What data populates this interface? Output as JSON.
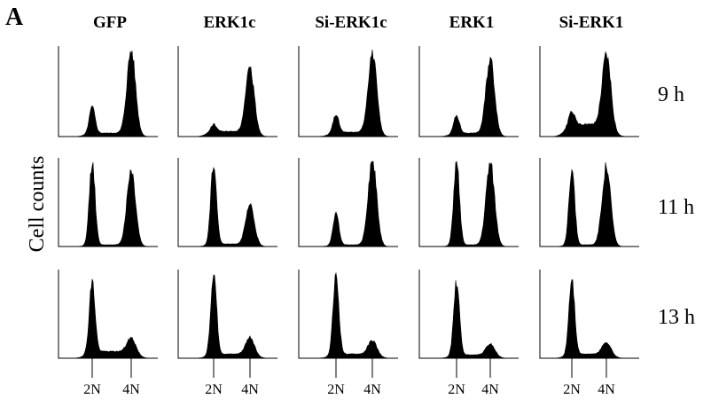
{
  "figure": {
    "panel_label": "A",
    "y_axis_label": "Cell counts",
    "x_tick_labels": [
      "2N",
      "4N"
    ]
  },
  "columns": [
    "GFP",
    "ERK1c",
    "Si-ERK1c",
    "ERK1",
    "Si-ERK1"
  ],
  "rows": [
    "9 h",
    "11 h",
    "13 h"
  ],
  "chart_data": {
    "type": "area",
    "description": "DNA-content flow cytometry histograms (cell counts vs DNA content) in a 3x5 grid",
    "columns": [
      "GFP",
      "ERK1c",
      "Si-ERK1c",
      "ERK1",
      "Si-ERK1"
    ],
    "rows": [
      "9 h",
      "11 h",
      "13 h"
    ],
    "x_ticks": [
      "2N",
      "4N"
    ],
    "ylabel": "Cell counts",
    "panels": [
      [
        {
          "peak_2N": 0.3,
          "peak_4N": 0.95,
          "background": 0.04
        },
        {
          "peak_2N": 0.08,
          "peak_4N": 0.72,
          "background": 0.06
        },
        {
          "peak_2N": 0.2,
          "peak_4N": 0.92,
          "background": 0.05
        },
        {
          "peak_2N": 0.2,
          "peak_4N": 0.86,
          "background": 0.04
        },
        {
          "peak_2N": 0.15,
          "peak_4N": 0.82,
          "background": 0.14
        }
      ],
      [
        {
          "peak_2N": 0.97,
          "peak_4N": 0.88,
          "background": 0.02
        },
        {
          "peak_2N": 0.96,
          "peak_4N": 0.45,
          "background": 0.03
        },
        {
          "peak_2N": 0.38,
          "peak_4N": 1.0,
          "background": 0.02
        },
        {
          "peak_2N": 0.98,
          "peak_4N": 0.95,
          "background": 0.02
        },
        {
          "peak_2N": 0.9,
          "peak_4N": 0.92,
          "background": 0.02
        }
      ],
      [
        {
          "peak_2N": 0.82,
          "peak_4N": 0.16,
          "background": 0.08
        },
        {
          "peak_2N": 0.97,
          "peak_4N": 0.2,
          "background": 0.05
        },
        {
          "peak_2N": 0.93,
          "peak_4N": 0.16,
          "background": 0.05
        },
        {
          "peak_2N": 0.85,
          "peak_4N": 0.13,
          "background": 0.04
        },
        {
          "peak_2N": 0.88,
          "peak_4N": 0.14,
          "background": 0.05
        }
      ]
    ]
  }
}
